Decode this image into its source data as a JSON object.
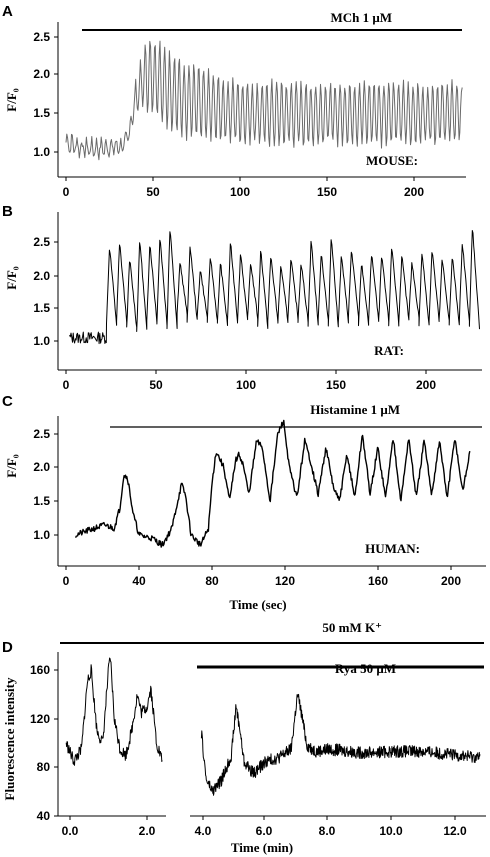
{
  "chart_data": [
    {
      "panel": "A",
      "type": "line",
      "ylabel": "F/F₀",
      "xlim": [
        0,
        228
      ],
      "ylim": [
        0.75,
        2.65
      ],
      "x_ticks": [
        "0",
        "50",
        "100",
        "150",
        "200"
      ],
      "y_ticks": [
        "1.0",
        "1.5",
        "2.0",
        "2.5"
      ],
      "annotations": [
        {
          "text": "MCh 1 μM",
          "bar_x": [
            8,
            228
          ],
          "bar_y": 2.6
        },
        {
          "text": "MOUSE:"
        }
      ],
      "color": "#6a6a6a",
      "series": [
        {
          "x": [
            0,
            10,
            20,
            33,
            36,
            40,
            45,
            50,
            55,
            60,
            70,
            80,
            90,
            100,
            120,
            140,
            160,
            180,
            200,
            228
          ],
          "upper": [
            1.25,
            1.15,
            1.15,
            1.15,
            1.3,
            1.9,
            2.35,
            2.5,
            2.45,
            2.3,
            2.15,
            2.05,
            1.95,
            1.9,
            1.9,
            1.88,
            1.9,
            1.92,
            1.9,
            1.9
          ],
          "lower": [
            1.0,
            0.95,
            0.95,
            1.0,
            1.15,
            1.5,
            1.6,
            1.5,
            1.4,
            1.3,
            1.2,
            1.15,
            1.15,
            1.15,
            1.1,
            1.1,
            1.12,
            1.1,
            1.1,
            1.15
          ],
          "period": 2.8
        }
      ]
    },
    {
      "panel": "B",
      "type": "line",
      "ylabel": "F/F₀",
      "xlim": [
        0,
        230
      ],
      "ylim": [
        0.8,
        2.9
      ],
      "x_ticks": [
        "0",
        "50",
        "100",
        "150",
        "200"
      ],
      "y_ticks": [
        "1.0",
        "1.5",
        "2.0",
        "2.5"
      ],
      "annotations": [
        {
          "text": "RAT:"
        }
      ],
      "color": "#000000",
      "series": [
        {
          "baseline_x": [
            2,
            22
          ],
          "baseline": 1.05,
          "period": 5.6,
          "start": 22.5,
          "end": 229,
          "peaks": [
            2.45,
            2.5,
            2.25,
            2.55,
            2.5,
            2.6,
            2.75,
            2.2,
            2.45,
            2.1,
            2.3,
            2.2,
            2.5,
            2.35,
            2.2,
            2.4,
            2.3,
            2.15,
            2.25,
            2.2,
            2.55,
            2.35,
            2.6,
            2.3,
            2.4,
            2.2,
            2.35,
            2.3,
            2.45,
            2.3,
            2.2,
            2.35,
            2.4,
            2.25,
            2.3,
            2.5,
            2.75,
            2.2
          ],
          "troughs": [
            1.25,
            1.3,
            1.2,
            1.15,
            1.3,
            1.25,
            1.2,
            1.4,
            1.3,
            1.35,
            1.3,
            1.25,
            1.3,
            1.3,
            1.35,
            1.2,
            1.3,
            1.3,
            1.35,
            1.3,
            1.25,
            1.3,
            1.2,
            1.3,
            1.35,
            1.25,
            1.3,
            1.3,
            1.25,
            1.3,
            1.35,
            1.25,
            1.3,
            1.3,
            1.25,
            1.3,
            1.2,
            1.6
          ]
        }
      ]
    },
    {
      "panel": "C",
      "type": "line",
      "ylabel": "F/F₀",
      "xlabel": "Time (sec)",
      "xlim": [
        0,
        212
      ],
      "ylim": [
        0.65,
        2.85
      ],
      "x_ticks": [
        "0",
        "40",
        "80",
        "120",
        "160",
        "200"
      ],
      "y_ticks": [
        "1.0",
        "1.5",
        "2.0",
        "2.5"
      ],
      "annotations": [
        {
          "text": "Histamine 1 μM",
          "bar_x": [
            22,
            212
          ],
          "bar_y": 2.65
        },
        {
          "text": "HUMAN:"
        }
      ],
      "color": "#000000",
      "series": [
        {
          "x": [
            5,
            10,
            15,
            20,
            25,
            28,
            30,
            32,
            35,
            38,
            45,
            50,
            55,
            58,
            60,
            62,
            65,
            70,
            74,
            76,
            78,
            82,
            85,
            88,
            90,
            92,
            95,
            99,
            102,
            106,
            110,
            113,
            116,
            120,
            124,
            127,
            131,
            135,
            139,
            142,
            146,
            150,
            154,
            158,
            162,
            166,
            170,
            174,
            178,
            182,
            186,
            190,
            194,
            198,
            202,
            206,
            210
          ],
          "y": [
            1.0,
            1.05,
            1.1,
            1.15,
            1.1,
            1.4,
            1.9,
            1.85,
            1.3,
            1.0,
            0.95,
            0.85,
            1.1,
            1.5,
            1.75,
            1.6,
            1.0,
            0.85,
            1.1,
            1.8,
            2.25,
            2.0,
            1.5,
            2.1,
            2.2,
            2.05,
            1.6,
            2.4,
            2.3,
            1.5,
            2.5,
            2.7,
            2.0,
            1.55,
            2.4,
            2.1,
            1.6,
            2.3,
            1.7,
            1.5,
            2.2,
            1.55,
            2.5,
            1.6,
            2.3,
            1.55,
            2.45,
            1.5,
            2.45,
            1.55,
            2.4,
            1.6,
            2.4,
            1.55,
            2.45,
            1.65,
            2.25
          ]
        }
      ]
    },
    {
      "panel": "D",
      "type": "line",
      "ylabel": "Fluorescence intensity",
      "xlabel": "Time (min)",
      "ylim": [
        40,
        172
      ],
      "y_ticks": [
        "40",
        "80",
        "120",
        "160"
      ],
      "x_ticks_left": [
        "0.0",
        "2.0"
      ],
      "x_ticks_right": [
        "4.0",
        "6.0",
        "8.0",
        "10.0",
        "12.0"
      ],
      "annotations": [
        {
          "text": "50 mM K⁺",
          "bar_x": [
            0,
            13.2
          ]
        },
        {
          "text": "Rya 50 μM",
          "bar_x": [
            3.8,
            13.2
          ]
        }
      ],
      "color": "#000000",
      "series": [
        {
          "name": "",
          "x": [
            -0.1,
            0.1,
            0.3,
            0.45,
            0.55,
            0.7,
            0.85,
            1.0,
            1.05,
            1.15,
            1.3,
            1.45,
            1.6,
            1.75,
            1.85,
            2.0,
            2.1,
            2.25,
            2.4
          ],
          "y": [
            100,
            85,
            95,
            150,
            160,
            110,
            100,
            160,
            170,
            120,
            95,
            90,
            110,
            140,
            125,
            130,
            145,
            100,
            85
          ]
        },
        {
          "name": "",
          "x": [
            3.95,
            4.1,
            4.3,
            4.6,
            4.9,
            5.05,
            5.15,
            5.3,
            5.6,
            6.0,
            6.4,
            6.8,
            7.0,
            7.1,
            7.3,
            7.6,
            8.0,
            9.0,
            10.0,
            11.0,
            12.0,
            12.8
          ],
          "y": [
            108,
            70,
            60,
            70,
            90,
            130,
            115,
            85,
            75,
            85,
            88,
            95,
            140,
            128,
            98,
            93,
            95,
            92,
            93,
            93,
            90,
            88
          ]
        }
      ]
    }
  ]
}
